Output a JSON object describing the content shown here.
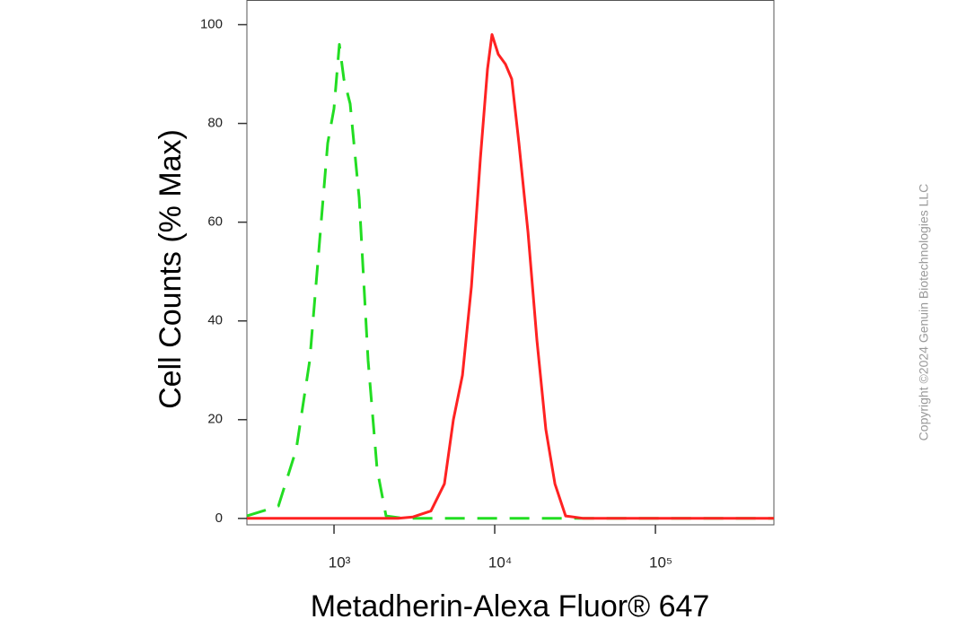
{
  "chart_data": {
    "type": "line",
    "x_label": "Metadherin-Alexa Fluor® 647",
    "y_label": "Cell Counts (% Max)",
    "watermark": "Copyright ©2024 Genuin Biotechnologies LLC",
    "xscale": "log",
    "xlim": [
      287,
      546000
    ],
    "ylim": [
      -1.3,
      105
    ],
    "xticks": [
      {
        "value": 1000,
        "label": "10³"
      },
      {
        "value": 10000,
        "label": "10⁴"
      },
      {
        "value": 100000,
        "label": "10⁵"
      }
    ],
    "yticks": [
      0,
      20,
      40,
      60,
      80,
      100
    ],
    "grid": false,
    "series": [
      {
        "color": "#22dd22",
        "linestyle": "dashed",
        "x": [
          287,
          451,
          582,
          706,
          803,
          914,
          1000,
          1080,
          1152,
          1260,
          1433,
          1630,
          1853,
          2109,
          2730,
          546000
        ],
        "values": [
          0.5,
          2.5,
          14,
          32,
          54,
          76,
          83,
          96,
          89,
          84,
          65,
          32,
          10,
          0.5,
          0,
          0
        ]
      },
      {
        "color": "#ff2222",
        "linestyle": "solid",
        "x": [
          287,
          2500,
          3101,
          4009,
          4864,
          5534,
          6295,
          7161,
          8147,
          9020,
          9616,
          10520,
          11660,
          12770,
          14150,
          16100,
          18320,
          20820,
          23680,
          27620,
          35720,
          546000
        ],
        "values": [
          0,
          0,
          0.3,
          1.5,
          7,
          20,
          29,
          47,
          73,
          91,
          98,
          94,
          92,
          89,
          76,
          58,
          36,
          18,
          7,
          0.5,
          0,
          0
        ]
      }
    ]
  }
}
